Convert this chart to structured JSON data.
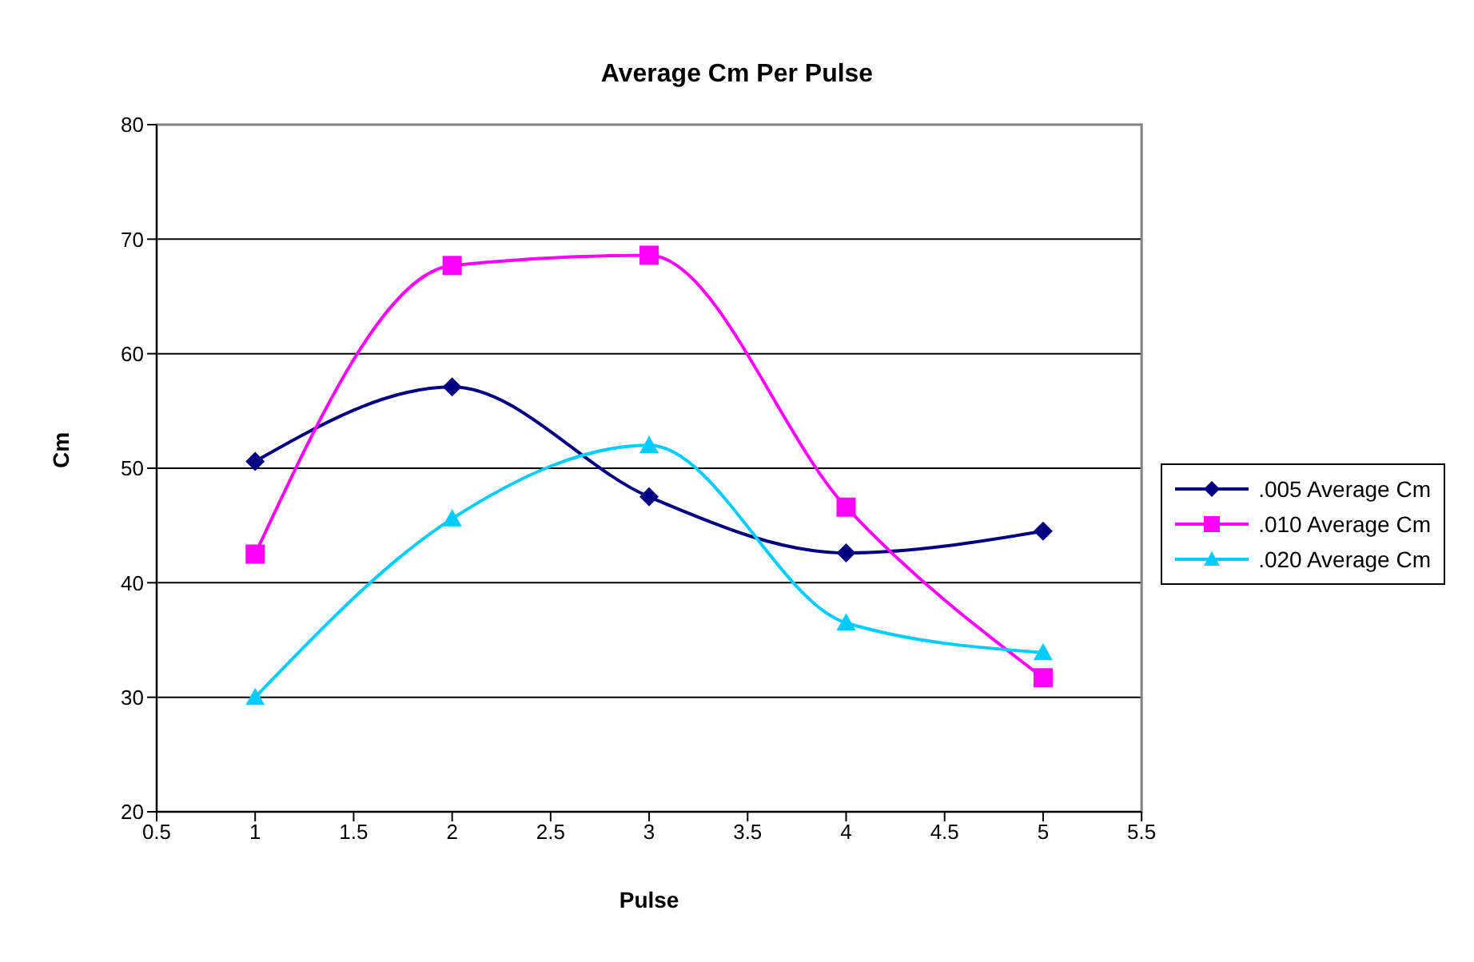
{
  "chart_data": {
    "type": "line",
    "title": "Average Cm Per Pulse",
    "xlabel": "Pulse",
    "ylabel": "Cm",
    "x": [
      1,
      2,
      3,
      4,
      5
    ],
    "series": [
      {
        "name": ".005 Average Cm",
        "color": "#000080",
        "marker": "diamond",
        "values": [
          50.6,
          57.1,
          47.5,
          42.6,
          44.5
        ]
      },
      {
        "name": ".010 Average Cm",
        "color": "#ff00ff",
        "marker": "square",
        "values": [
          42.5,
          67.7,
          68.6,
          46.6,
          31.7
        ]
      },
      {
        "name": ".020 Average Cm",
        "color": "#00ccff",
        "marker": "triangle",
        "values": [
          30.0,
          45.6,
          52.0,
          36.5,
          33.9
        ]
      }
    ],
    "xlim": [
      0.5,
      5.5
    ],
    "xticks": [
      0.5,
      1,
      1.5,
      2,
      2.5,
      3,
      3.5,
      4,
      4.5,
      5,
      5.5
    ],
    "ylim": [
      20,
      80
    ],
    "yticks": [
      20,
      30,
      40,
      50,
      60,
      70,
      80
    ],
    "grid": "y",
    "legend": "right",
    "line_style": "solid"
  }
}
